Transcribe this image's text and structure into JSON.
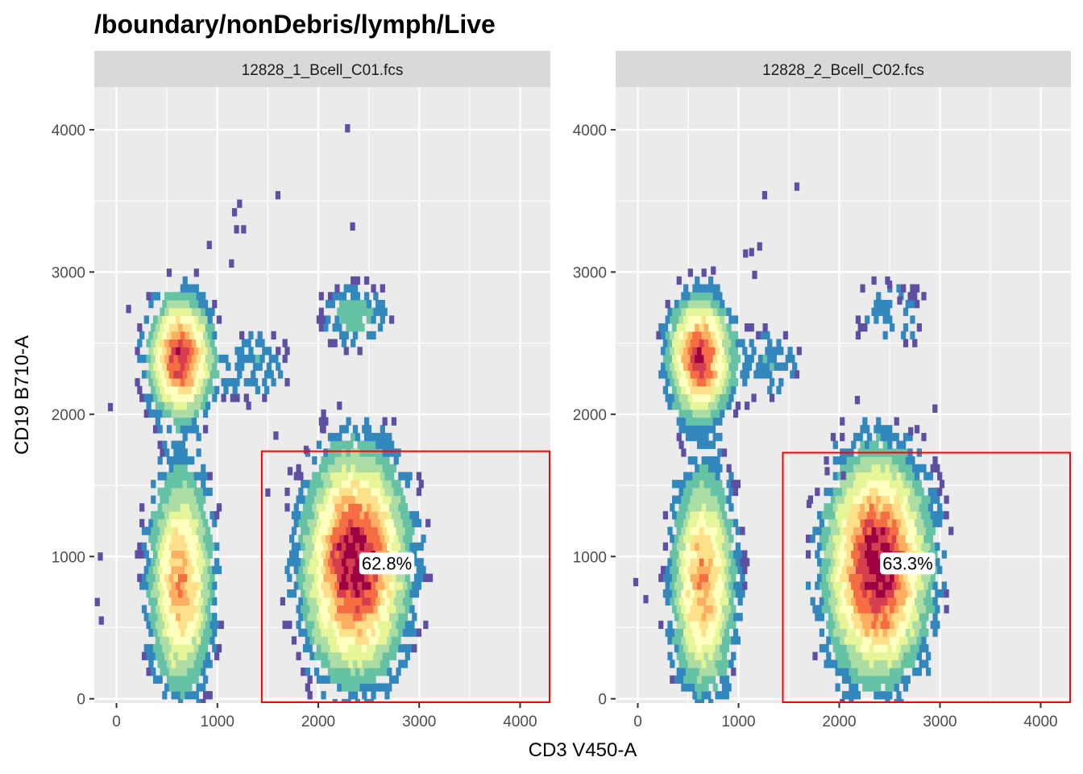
{
  "chart_data": {
    "type": "heatmap",
    "title": "/boundary/nonDebris/lymph/Live",
    "xlabel": "CD3 V450-A",
    "ylabel": "CD19 B710-A",
    "xlim": [
      -220,
      4300
    ],
    "ylim": [
      -30,
      4300
    ],
    "xticks": [
      0,
      1000,
      2000,
      3000,
      4000
    ],
    "yticks": [
      0,
      1000,
      2000,
      3000,
      4000
    ],
    "grid": true,
    "colors": {
      "panel_bg": "#EBEBEB",
      "strip_bg": "#D9D9D9",
      "grid": "#FFFFFF",
      "gate": "#FF0000",
      "density_scale": [
        "#5E4FA2",
        "#3288BD",
        "#66C2A5",
        "#ABDDA4",
        "#E6F598",
        "#FFFFBF",
        "#FEE08B",
        "#FDAE61",
        "#F46D43",
        "#D53E4F",
        "#9E0142"
      ]
    },
    "panels": [
      {
        "strip": "12828_1_Bcell_C01.fcs",
        "gate": {
          "x": [
            1440,
            4300
          ],
          "y": [
            -30,
            1740
          ],
          "label": "62.8%",
          "label_pos": [
            2430,
            920
          ]
        },
        "populations": [
          {
            "cx": 640,
            "cy": 2400,
            "sx": 170,
            "sy": 230,
            "peak": 0.85
          },
          {
            "cx": 640,
            "cy": 820,
            "sx": 170,
            "sy": 430,
            "peak": 0.62
          },
          {
            "cx": 2370,
            "cy": 950,
            "sx": 270,
            "sy": 420,
            "peak": 1.0
          },
          {
            "cx": 2360,
            "cy": 2700,
            "sx": 200,
            "sy": 130,
            "peak": 0.15
          },
          {
            "cx": 1350,
            "cy": 2350,
            "sx": 220,
            "sy": 170,
            "peak": 0.1
          }
        ],
        "outliers": [
          [
            2290,
            4010
          ],
          [
            1600,
            3540
          ],
          [
            1220,
            3480
          ],
          [
            1170,
            3420
          ],
          [
            1260,
            3300
          ],
          [
            1190,
            3300
          ],
          [
            1140,
            3060
          ],
          [
            920,
            3190
          ],
          [
            2340,
            3320
          ],
          [
            120,
            2740
          ],
          [
            -60,
            2050
          ],
          [
            -160,
            1000
          ],
          [
            -190,
            680
          ],
          [
            -150,
            550
          ],
          [
            1580,
            1850
          ],
          [
            1500,
            1450
          ],
          [
            1720,
            1600
          ],
          [
            2040,
            1900
          ],
          [
            1880,
            1750
          ]
        ]
      },
      {
        "strip": "12828_2_Bcell_C02.fcs",
        "gate": {
          "x": [
            1440,
            4300
          ],
          "y": [
            -30,
            1730
          ],
          "label": "63.3%",
          "label_pos": [
            2430,
            920
          ]
        },
        "populations": [
          {
            "cx": 620,
            "cy": 2400,
            "sx": 170,
            "sy": 230,
            "peak": 0.85
          },
          {
            "cx": 650,
            "cy": 820,
            "sx": 170,
            "sy": 430,
            "peak": 0.62
          },
          {
            "cx": 2380,
            "cy": 930,
            "sx": 270,
            "sy": 420,
            "peak": 1.0
          },
          {
            "cx": 2500,
            "cy": 2700,
            "sx": 250,
            "sy": 170,
            "peak": 0.08
          },
          {
            "cx": 1300,
            "cy": 2350,
            "sx": 220,
            "sy": 170,
            "peak": 0.1
          }
        ],
        "outliers": [
          [
            1580,
            3600
          ],
          [
            1260,
            3540
          ],
          [
            1210,
            3180
          ],
          [
            1130,
            3140
          ],
          [
            1070,
            3130
          ],
          [
            1160,
            2980
          ],
          [
            750,
            3010
          ],
          [
            2500,
            2910
          ],
          [
            2600,
            2800
          ],
          [
            -20,
            820
          ],
          [
            80,
            700
          ],
          [
            1880,
            1600
          ],
          [
            1700,
            1370
          ],
          [
            2710,
            1880
          ],
          [
            2950,
            2040
          ],
          [
            2180,
            2100
          ],
          [
            2040,
            1570
          ]
        ]
      }
    ]
  }
}
